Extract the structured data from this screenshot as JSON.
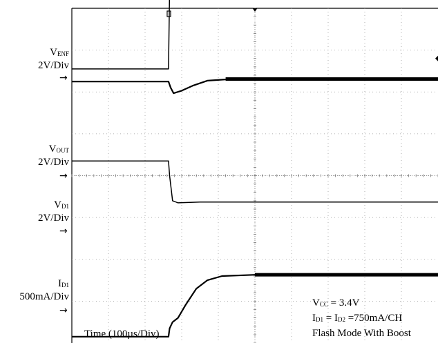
{
  "chart_data": {
    "type": "line",
    "title": "",
    "grid": true,
    "divisions": {
      "x": 10,
      "y": 8
    },
    "xlabel": "Time (100µs/Div)",
    "trigger_time_div": 2.65,
    "series": [
      {
        "name": "VENF",
        "name_main": "V",
        "name_sub": "ENF",
        "scale": "2V/Div",
        "baseline_div": 6.55,
        "points_div": [
          [
            0,
            0
          ],
          [
            2.64,
            0
          ],
          [
            2.67,
            1.9
          ],
          [
            10,
            1.9
          ]
        ]
      },
      {
        "name": "VOUT",
        "name_main": "V",
        "name_sub": "OUT",
        "scale": "2V/Div",
        "baseline_div": 4.25,
        "points_div": [
          [
            0,
            2.0
          ],
          [
            2.64,
            2.0
          ],
          [
            2.7,
            1.85
          ],
          [
            2.78,
            1.72
          ],
          [
            3.0,
            1.78
          ],
          [
            3.3,
            1.9
          ],
          [
            3.7,
            2.02
          ],
          [
            4.2,
            2.05
          ],
          [
            10,
            2.06
          ]
        ]
      },
      {
        "name": "VD1",
        "name_main": "V",
        "name_sub": "D1",
        "scale": "2V/Div",
        "baseline_div": 3.1,
        "points_div": [
          [
            0,
            1.25
          ],
          [
            2.64,
            1.25
          ],
          [
            2.67,
            0.9
          ],
          [
            2.75,
            0.3
          ],
          [
            2.9,
            0.25
          ],
          [
            3.5,
            0.27
          ],
          [
            10,
            0.27
          ]
        ]
      },
      {
        "name": "ID1",
        "name_main": "I",
        "name_sub": "D1",
        "scale": "500mA/Div",
        "baseline_div": 0.15,
        "points_div": [
          [
            0,
            0
          ],
          [
            2.64,
            0
          ],
          [
            2.67,
            0.2
          ],
          [
            2.75,
            0.35
          ],
          [
            2.9,
            0.45
          ],
          [
            3.1,
            0.75
          ],
          [
            3.4,
            1.15
          ],
          [
            3.7,
            1.35
          ],
          [
            4.1,
            1.45
          ],
          [
            5.0,
            1.48
          ],
          [
            10,
            1.48
          ]
        ]
      }
    ],
    "annotations": {
      "vcc": {
        "prefix": "V",
        "sub": "CC",
        "suffix": " = 3.4V"
      },
      "current": {
        "p1": "I",
        "s1": "D1",
        "mid": " = I",
        "s2": "D2",
        "suffix": " =750mA/CH"
      },
      "mode": "Flash Mode With Boost"
    }
  }
}
